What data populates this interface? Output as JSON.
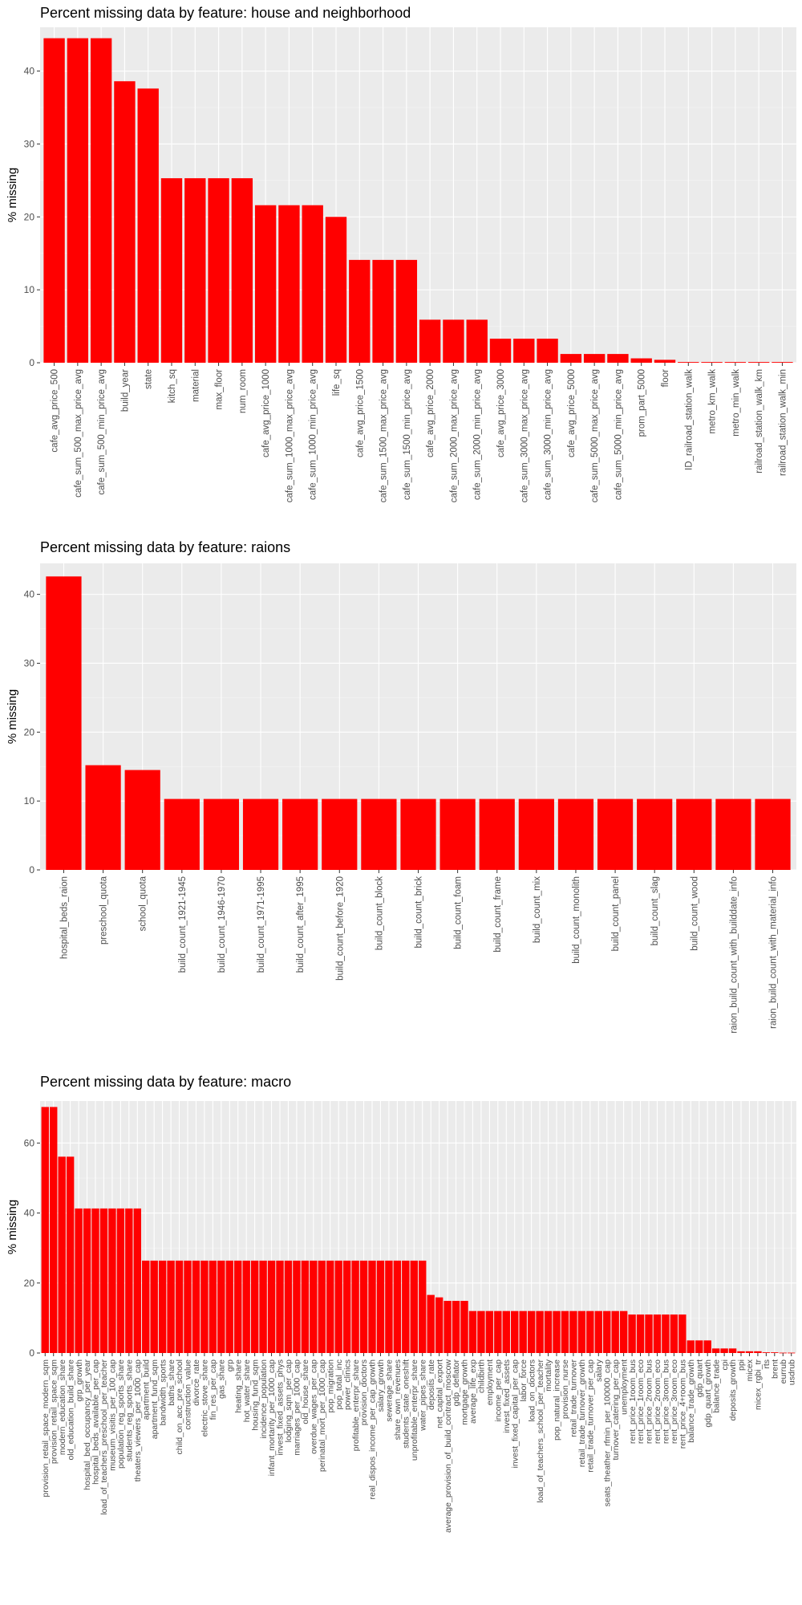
{
  "chart_data": [
    {
      "type": "bar",
      "title": "Percent missing data by feature: house and neighborhood",
      "xlabel": "",
      "ylabel": "% missing",
      "ylim": [
        0,
        46
      ],
      "yticks": [
        0,
        10,
        20,
        30,
        40
      ],
      "grid": true,
      "bar_color": "#ff0000",
      "categories": [
        "cafe_avg_price_500",
        "cafe_sum_500_max_price_avg",
        "cafe_sum_500_min_price_avg",
        "build_year",
        "state",
        "kitch_sq",
        "material",
        "max_floor",
        "num_room",
        "cafe_avg_price_1000",
        "cafe_sum_1000_max_price_avg",
        "cafe_sum_1000_min_price_avg",
        "life_sq",
        "cafe_avg_price_1500",
        "cafe_sum_1500_max_price_avg",
        "cafe_sum_1500_min_price_avg",
        "cafe_avg_price_2000",
        "cafe_sum_2000_max_price_avg",
        "cafe_sum_2000_min_price_avg",
        "cafe_avg_price_3000",
        "cafe_sum_3000_max_price_avg",
        "cafe_sum_3000_min_price_avg",
        "cafe_avg_price_5000",
        "cafe_sum_5000_max_price_avg",
        "cafe_sum_5000_min_price_avg",
        "prom_part_5000",
        "floor",
        "ID_railroad_station_walk",
        "metro_km_walk",
        "metro_min_walk",
        "railroad_station_walk_km",
        "railroad_station_walk_min"
      ],
      "values": [
        44.5,
        44.5,
        44.5,
        38.6,
        37.6,
        25.3,
        25.3,
        25.3,
        25.3,
        21.6,
        21.6,
        21.6,
        20.0,
        14.1,
        14.1,
        14.1,
        5.9,
        5.9,
        5.9,
        3.3,
        3.3,
        3.3,
        1.2,
        1.2,
        1.2,
        0.6,
        0.4,
        0.1,
        0.1,
        0.1,
        0.1,
        0.1
      ]
    },
    {
      "type": "bar",
      "title": "Percent missing data by feature: raions",
      "xlabel": "",
      "ylabel": "% missing",
      "ylim": [
        0,
        44.5
      ],
      "yticks": [
        0,
        10,
        20,
        30,
        40
      ],
      "grid": true,
      "bar_color": "#ff0000",
      "categories": [
        "hospital_beds_raion",
        "preschool_quota",
        "school_quota",
        "build_count_1921-1945",
        "build_count_1946-1970",
        "build_count_1971-1995",
        "build_count_after_1995",
        "build_count_before_1920",
        "build_count_block",
        "build_count_brick",
        "build_count_foam",
        "build_count_frame",
        "build_count_mix",
        "build_count_monolith",
        "build_count_panel",
        "build_count_slag",
        "build_count_wood",
        "raion_build_count_with_builddate_info",
        "raion_build_count_with_material_info"
      ],
      "values": [
        42.6,
        15.2,
        14.5,
        10.3,
        10.3,
        10.3,
        10.3,
        10.3,
        10.3,
        10.3,
        10.3,
        10.3,
        10.3,
        10.3,
        10.3,
        10.3,
        10.3,
        10.3,
        10.3
      ]
    },
    {
      "type": "bar",
      "title": "Percent missing data by feature: macro",
      "xlabel": "",
      "ylabel": "% missing",
      "ylim": [
        0,
        72
      ],
      "yticks": [
        0,
        20,
        40,
        60
      ],
      "grid": true,
      "bar_color": "#ff0000",
      "categories": [
        "provision_retail_space_modern_sqm",
        "provision_retail_space_sqm",
        "modern_education_share",
        "old_education_build_share",
        "grp_growth",
        "hospital_bed_occupancy_per_year",
        "hospital_beds_available_per_cap",
        "load_of_teachers_preschool_per_teacher",
        "museum_visitis_per_100_cap",
        "population_reg_sports_share",
        "students_reg_sports_share",
        "theaters_viewers_per_1000_cap",
        "apartment_build",
        "apartment_fund_sqm",
        "bandwidth_sports",
        "baths_share",
        "child_on_acc_pre_school",
        "construction_value",
        "divorce_rate",
        "electric_stove_share",
        "fin_res_per_cap",
        "gas_share",
        "grp",
        "heating_share",
        "hot_water_share",
        "housing_fund_sqm",
        "incidence_population",
        "infant_mortarity_per_1000_cap",
        "invest_fixed_assets_phys",
        "lodging_sqm_per_cap",
        "marriages_per_1000_cap",
        "old_house_share",
        "overdue_wages_per_cap",
        "perinatal_mort_per_1000_cap",
        "pop_migration",
        "pop_total_inc",
        "power_clinics",
        "profitable_enterpr_share",
        "provision_doctors",
        "real_dispos_income_per_cap_growth",
        "salary_growth",
        "sewerage_share",
        "share_own_revenues",
        "students_state_oneshift",
        "unprofitable_enterpr_share",
        "water_pipes_share",
        "deposits_rate",
        "net_capital_export",
        "average_provision_of_build_contract_moscow",
        "gdp_deflator",
        "mortgage_growth",
        "average_life_exp",
        "childbirth",
        "employment",
        "income_per_cap",
        "invest_fixed_assets",
        "invest_fixed_capital_per_cap",
        "labor_force",
        "load_on_doctors",
        "load_of_teachers_school_per_teacher",
        "mortality",
        "pop_natural_increase",
        "provision_nurse",
        "retail_trade_turnover",
        "retail_trade_turnover_growth",
        "retail_trade_turnover_per_cap",
        "salary",
        "seats_theather_rfmin_per_100000_cap",
        "turnover_catering_per_cap",
        "unemployment",
        "rent_price_1room_bus",
        "rent_price_1room_eco",
        "rent_price_2room_bus",
        "rent_price_2room_eco",
        "rent_price_3room_bus",
        "rent_price_3room_eco",
        "rent_price_4+room_bus",
        "balance_trade_growth",
        "gdp_quart",
        "gdp_quart_growth",
        "balance_trade",
        "cpi",
        "deposits_growth",
        "ppi",
        "micex",
        "micex_rgbi_tr",
        "rts",
        "brent",
        "eurrub",
        "usdrub"
      ],
      "values": [
        70.3,
        70.3,
        56.1,
        56.1,
        41.3,
        41.3,
        41.3,
        41.3,
        41.3,
        41.3,
        41.3,
        41.3,
        26.4,
        26.4,
        26.4,
        26.4,
        26.4,
        26.4,
        26.4,
        26.4,
        26.4,
        26.4,
        26.4,
        26.4,
        26.4,
        26.4,
        26.4,
        26.4,
        26.4,
        26.4,
        26.4,
        26.4,
        26.4,
        26.4,
        26.4,
        26.4,
        26.4,
        26.4,
        26.4,
        26.4,
        26.4,
        26.4,
        26.4,
        26.4,
        26.4,
        26.4,
        16.6,
        15.9,
        14.9,
        14.9,
        14.9,
        12.0,
        12.0,
        12.0,
        12.0,
        12.0,
        12.0,
        12.0,
        12.0,
        12.0,
        12.0,
        12.0,
        12.0,
        12.0,
        12.0,
        12.0,
        12.0,
        12.0,
        12.0,
        12.0,
        11.0,
        11.0,
        11.0,
        11.0,
        11.0,
        11.0,
        11.0,
        3.6,
        3.6,
        3.6,
        1.3,
        1.3,
        1.3,
        0.5,
        0.5,
        0.5,
        0.2,
        0.2,
        0.1,
        0.1
      ]
    }
  ]
}
